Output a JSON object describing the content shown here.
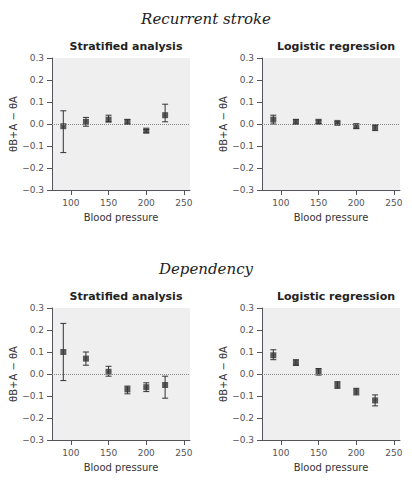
{
  "chart_data": [
    {
      "title": "Recurrent stroke",
      "charts": [
        {
          "type": "scatter",
          "title": "Stratified analysis",
          "xlabel": "Blood pressure",
          "ylabel": "θB+A − θA",
          "x": [
            90,
            120,
            150,
            175,
            200,
            225
          ],
          "values": [
            -0.01,
            0.01,
            0.02,
            0.01,
            -0.03,
            0.04
          ],
          "error_low": [
            0.12,
            0.02,
            0.01,
            0.01,
            0.01,
            0.03
          ],
          "error_high": [
            0.07,
            0.02,
            0.02,
            0.01,
            0.005,
            0.05
          ],
          "color": "#333333",
          "marker": "square",
          "hline": 0,
          "grid": false,
          "xlim": [
            75,
            258
          ],
          "xticks": [
            100,
            150,
            200,
            250
          ],
          "ylim": [
            -0.3,
            0.3
          ],
          "yticks": [
            {
              "value": -0.3,
              "label": "−0.3"
            },
            {
              "value": -0.2,
              "label": "−0.2"
            },
            {
              "value": -0.1,
              "label": "−0.1"
            },
            {
              "value": 0.0,
              "label": "0.0"
            },
            0.1,
            0.2,
            0.3
          ]
        },
        {
          "type": "scatter",
          "title": "Logistic regression",
          "xlabel": "Blood pressure",
          "ylabel": "θB+A − θA",
          "x": [
            90,
            120,
            150,
            175,
            200,
            225
          ],
          "values": [
            0.02,
            0.01,
            0.01,
            0.005,
            -0.01,
            -0.015
          ],
          "error_low": [
            0.02,
            0.01,
            0.008,
            0.005,
            0.01,
            0.015
          ],
          "error_high": [
            0.02,
            0.01,
            0.008,
            0.005,
            0.01,
            0.01
          ],
          "color": "#333333",
          "marker": "square",
          "hline": 0,
          "grid": false,
          "xlim": [
            75,
            258
          ],
          "xticks": [
            100,
            150,
            200,
            250
          ],
          "ylim": [
            -0.3,
            0.3
          ],
          "yticks": [
            {
              "value": -0.3,
              "label": "−0.3"
            },
            {
              "value": -0.2,
              "label": "−0.2"
            },
            {
              "value": -0.1,
              "label": "−0.1"
            },
            {
              "value": 0.0,
              "label": "0.0"
            },
            0.1,
            0.2,
            0.3
          ]
        }
      ]
    },
    {
      "title": "Dependency",
      "charts": [
        {
          "type": "scatter",
          "title": "Stratified analysis",
          "xlabel": "Blood pressure",
          "ylabel": "θB+A − θA",
          "x": [
            90,
            120,
            150,
            175,
            200,
            225
          ],
          "values": [
            0.1,
            0.07,
            0.01,
            -0.07,
            -0.06,
            -0.05
          ],
          "error_low": [
            0.13,
            0.03,
            0.02,
            0.02,
            0.02,
            0.06
          ],
          "error_high": [
            0.13,
            0.03,
            0.025,
            0.015,
            0.02,
            0.04
          ],
          "color": "#333333",
          "marker": "square",
          "hline": 0,
          "grid": false,
          "xlim": [
            75,
            258
          ],
          "xticks": [
            100,
            150,
            200,
            250
          ],
          "ylim": [
            -0.3,
            0.3
          ],
          "yticks": [
            {
              "value": -0.3,
              "label": "−0.3"
            },
            {
              "value": -0.2,
              "label": "−0.2"
            },
            {
              "value": -0.1,
              "label": "−0.1"
            },
            {
              "value": 0.0,
              "label": "0.0"
            },
            0.1,
            0.2,
            0.3
          ]
        },
        {
          "type": "scatter",
          "title": "Logistic regression",
          "xlabel": "Blood pressure",
          "ylabel": "θB+A − θA",
          "x": [
            90,
            120,
            150,
            175,
            200,
            225
          ],
          "values": [
            0.085,
            0.05,
            0.01,
            -0.05,
            -0.08,
            -0.12
          ],
          "error_low": [
            0.02,
            0.01,
            0.015,
            0.015,
            0.015,
            0.025
          ],
          "error_high": [
            0.025,
            0.015,
            0.015,
            0.015,
            0.015,
            0.025
          ],
          "color": "#333333",
          "marker": "square",
          "hline": 0,
          "grid": false,
          "xlim": [
            75,
            258
          ],
          "xticks": [
            100,
            150,
            200,
            250
          ],
          "ylim": [
            -0.3,
            0.3
          ],
          "yticks": [
            {
              "value": -0.3,
              "label": "−0.3"
            },
            {
              "value": -0.2,
              "label": "−0.2"
            },
            {
              "value": -0.1,
              "label": "−0.1"
            },
            {
              "value": 0.0,
              "label": "0.0"
            },
            0.1,
            0.2,
            0.3
          ]
        }
      ]
    }
  ]
}
